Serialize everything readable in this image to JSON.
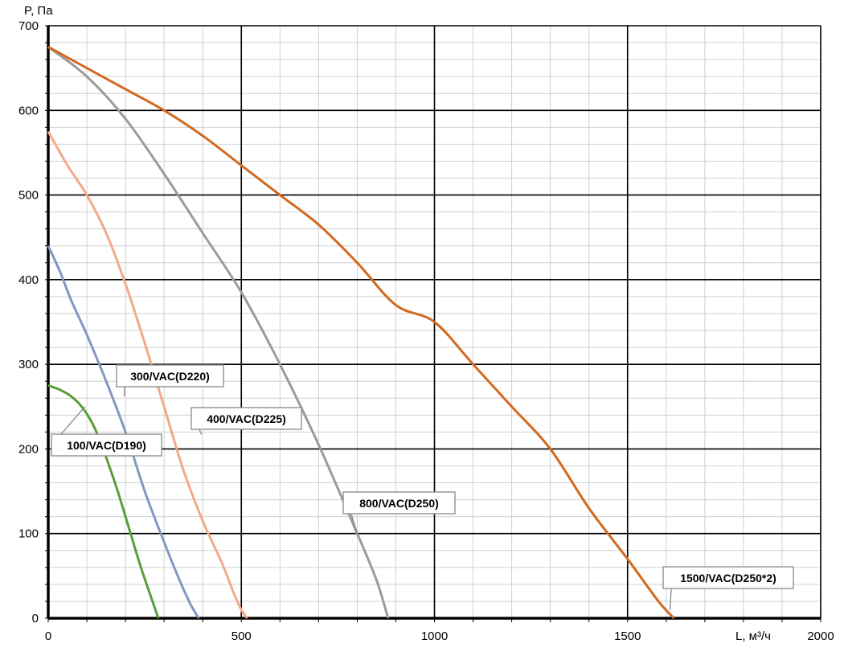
{
  "chart_data": {
    "type": "line",
    "xlabel": "L, м³/ч",
    "ylabel": "P, Па",
    "xlim": [
      0,
      2000
    ],
    "ylim": [
      0,
      700
    ],
    "x_ticks": [
      "0",
      "500",
      "1000",
      "1500",
      "2000"
    ],
    "y_ticks": [
      "0",
      "100",
      "200",
      "300",
      "400",
      "500",
      "600",
      "700"
    ],
    "grid": "major and minor",
    "series": [
      {
        "name": "100/VAC(D190)",
        "color": "#5a9e3a",
        "points": [
          [
            0,
            275
          ],
          [
            30,
            270
          ],
          [
            60,
            262
          ],
          [
            90,
            248
          ],
          [
            120,
            225
          ],
          [
            150,
            190
          ],
          [
            180,
            150
          ],
          [
            210,
            105
          ],
          [
            240,
            60
          ],
          [
            270,
            20
          ],
          [
            285,
            0
          ]
        ],
        "label_anchor": [
          95,
          250
        ]
      },
      {
        "name": "300/VAC(D220)",
        "color": "#8596c2",
        "points": [
          [
            0,
            440
          ],
          [
            30,
            410
          ],
          [
            60,
            375
          ],
          [
            100,
            335
          ],
          [
            150,
            280
          ],
          [
            200,
            220
          ],
          [
            250,
            150
          ],
          [
            300,
            90
          ],
          [
            340,
            45
          ],
          [
            370,
            15
          ],
          [
            390,
            0
          ]
        ],
        "label_anchor": [
          197,
          262
        ]
      },
      {
        "name": "400/VAC(D225)",
        "color": "#f2a98a",
        "points": [
          [
            0,
            575
          ],
          [
            50,
            535
          ],
          [
            100,
            500
          ],
          [
            150,
            455
          ],
          [
            200,
            395
          ],
          [
            250,
            325
          ],
          [
            300,
            250
          ],
          [
            350,
            175
          ],
          [
            400,
            115
          ],
          [
            450,
            65
          ],
          [
            480,
            30
          ],
          [
            500,
            10
          ],
          [
            515,
            0
          ]
        ],
        "label_anchor": [
          397,
          217
        ]
      },
      {
        "name": "800/VAC(D250)",
        "color": "#9b9b9b",
        "points": [
          [
            0,
            675
          ],
          [
            100,
            640
          ],
          [
            200,
            590
          ],
          [
            300,
            525
          ],
          [
            400,
            455
          ],
          [
            500,
            385
          ],
          [
            600,
            300
          ],
          [
            700,
            205
          ],
          [
            800,
            100
          ],
          [
            850,
            45
          ],
          [
            880,
            0
          ]
        ],
        "label_anchor": [
          800,
          100
        ]
      },
      {
        "name": "1500/VAC(D250*2)",
        "color": "#d2691e",
        "points": [
          [
            0,
            675
          ],
          [
            100,
            650
          ],
          [
            200,
            625
          ],
          [
            300,
            600
          ],
          [
            400,
            570
          ],
          [
            500,
            535
          ],
          [
            600,
            500
          ],
          [
            700,
            465
          ],
          [
            800,
            420
          ],
          [
            900,
            370
          ],
          [
            1000,
            350
          ],
          [
            1100,
            300
          ],
          [
            1200,
            250
          ],
          [
            1300,
            200
          ],
          [
            1400,
            130
          ],
          [
            1500,
            70
          ],
          [
            1580,
            20
          ],
          [
            1620,
            0
          ]
        ],
        "label_anchor": [
          1610,
          10
        ]
      }
    ]
  }
}
